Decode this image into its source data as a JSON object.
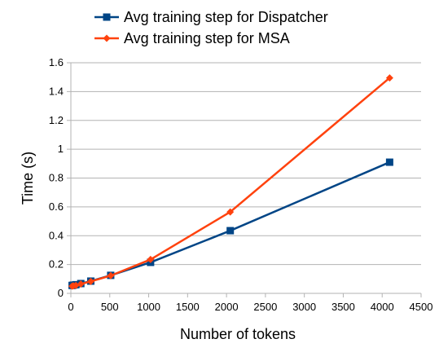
{
  "chart_data": {
    "type": "line",
    "title": "",
    "xlabel": "Number of tokens",
    "ylabel": "Time (s)",
    "xlim": [
      0,
      4500
    ],
    "ylim": [
      0,
      1.6
    ],
    "x_ticks": [
      "0",
      "500",
      "1000",
      "1500",
      "2000",
      "2500",
      "3000",
      "3500",
      "4000",
      "4500"
    ],
    "y_ticks": [
      "0",
      "0.2",
      "0.4",
      "0.6",
      "0.8",
      "1",
      "1.2",
      "1.4",
      "1.6"
    ],
    "grid": "horizontal",
    "legend_position": "top",
    "series": [
      {
        "name": "Avg training step for Dispatcher",
        "color": "#004586",
        "marker": "square",
        "x": [
          16,
          32,
          64,
          128,
          256,
          512,
          1024,
          2048,
          4096
        ],
        "y": [
          0.055,
          0.057,
          0.06,
          0.068,
          0.085,
          0.125,
          0.215,
          0.435,
          0.91
        ]
      },
      {
        "name": "Avg training step for MSA",
        "color": "#ff420e",
        "marker": "diamond",
        "x": [
          16,
          32,
          64,
          128,
          256,
          512,
          1024,
          2048,
          4096
        ],
        "y": [
          0.05,
          0.052,
          0.055,
          0.065,
          0.083,
          0.123,
          0.235,
          0.565,
          1.495
        ]
      }
    ]
  }
}
